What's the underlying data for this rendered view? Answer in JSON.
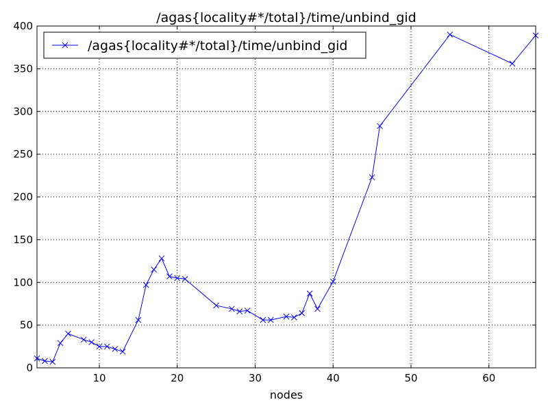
{
  "chart_data": {
    "type": "line",
    "title": "/agas{locality#*/total}/time/unbind_gid",
    "xlabel": "nodes",
    "ylabel": "",
    "xlim": [
      2,
      66
    ],
    "ylim": [
      0,
      400
    ],
    "xticks": [
      10,
      20,
      30,
      40,
      50,
      60
    ],
    "yticks": [
      0,
      50,
      100,
      150,
      200,
      250,
      300,
      350,
      400
    ],
    "grid": true,
    "legend_position": "top-left",
    "series": [
      {
        "name": "/agas{locality#*/total}/time/unbind_gid",
        "color": "#0000ff",
        "marker": "x",
        "points": [
          [
            2,
            11
          ],
          [
            3,
            8
          ],
          [
            4,
            7
          ],
          [
            5,
            29
          ],
          [
            6,
            40
          ],
          [
            8,
            33
          ],
          [
            9,
            30
          ],
          [
            10,
            25
          ],
          [
            11,
            25
          ],
          [
            12,
            22
          ],
          [
            13,
            19
          ],
          [
            15,
            56
          ],
          [
            16,
            97
          ],
          [
            17,
            115
          ],
          [
            18,
            128
          ],
          [
            19,
            107
          ],
          [
            20,
            105
          ],
          [
            21,
            104
          ],
          [
            25,
            73
          ],
          [
            27,
            69
          ],
          [
            28,
            66
          ],
          [
            29,
            67
          ],
          [
            31,
            56
          ],
          [
            32,
            56
          ],
          [
            34,
            60
          ],
          [
            35,
            59
          ],
          [
            36,
            64
          ],
          [
            37,
            87
          ],
          [
            38,
            69
          ],
          [
            40,
            101
          ],
          [
            45,
            223
          ],
          [
            46,
            283
          ],
          [
            55,
            390
          ],
          [
            63,
            356
          ],
          [
            66,
            389
          ]
        ]
      }
    ]
  }
}
